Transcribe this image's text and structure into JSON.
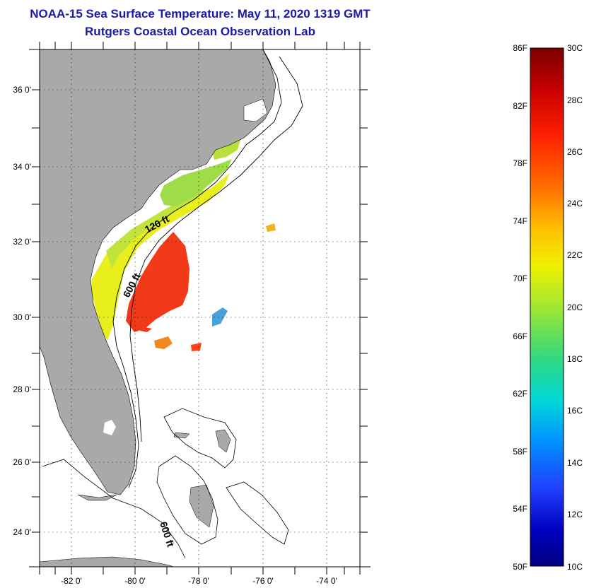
{
  "title_line1": "NOAA-15 Sea Surface Temperature:  May 11, 2020 1319 GMT",
  "title_line2": "Rutgers Coastal Ocean Observation Lab",
  "lat_labels": [
    "36 0'",
    "34 0'",
    "32 0'",
    "30 0'",
    "28 0'",
    "26 0'",
    "24 0'"
  ],
  "lon_labels": [
    "-82 0'",
    "-80 0'",
    "-78 0'",
    "-76 0'",
    "-74 0'"
  ],
  "contour_labels": [
    "120 ft",
    "600 ft",
    "600 ft"
  ],
  "colorbar": {
    "f_labels": [
      "86F",
      "82F",
      "78F",
      "74F",
      "70F",
      "66F",
      "62F",
      "58F",
      "54F",
      "50F"
    ],
    "c_labels": [
      "30C",
      "28C",
      "26C",
      "24C",
      "22C",
      "20C",
      "18C",
      "16C",
      "14C",
      "12C",
      "10C"
    ],
    "colors": [
      "#7a0000",
      "#c80000",
      "#ff2000",
      "#ff7000",
      "#ffc000",
      "#f0f000",
      "#a0e830",
      "#30d880",
      "#00d8d8",
      "#0090ff",
      "#2040ff",
      "#0000c0",
      "#000080"
    ]
  },
  "colors": {
    "land": "#a9a9a9",
    "title": "#1a1aa6"
  }
}
